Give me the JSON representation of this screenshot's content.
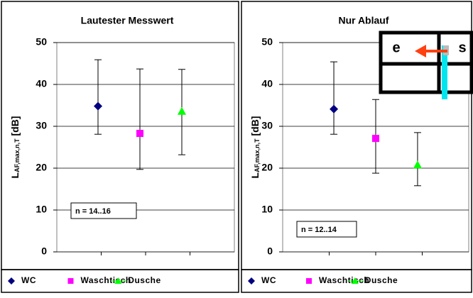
{
  "chart_data": [
    {
      "type": "errorbar",
      "title": "Lautester Messwert",
      "y_label": {
        "main": "L",
        "sub": "AF,max,n,T",
        "unit": "[dB]"
      },
      "annotation": "n = 14..16",
      "ylim": [
        0,
        50
      ],
      "yticks": [
        0,
        10,
        20,
        30,
        40,
        50
      ],
      "grid": true,
      "series": [
        {
          "name": "WC",
          "color": "#000080",
          "marker": "diamond",
          "values": [
            34.8
          ],
          "lower": [
            28.1
          ],
          "upper": [
            45.9
          ]
        },
        {
          "name": "Waschtisch",
          "color": "#ff00ff",
          "marker": "square",
          "values": [
            28.3
          ],
          "lower": [
            19.7
          ],
          "upper": [
            43.7
          ]
        },
        {
          "name": "Dusche",
          "color": "#00ff00",
          "marker": "triangle",
          "values": [
            33.6
          ],
          "lower": [
            23.2
          ],
          "upper": [
            43.6
          ]
        }
      ]
    },
    {
      "type": "errorbar",
      "title": "Nur Ablauf",
      "y_label": {
        "main": "L",
        "sub": "AF,max,n,T",
        "unit": "[dB]"
      },
      "annotation": "n = 12..14",
      "ylim": [
        0,
        50
      ],
      "yticks": [
        0,
        10,
        20,
        30,
        40,
        50
      ],
      "grid": true,
      "series": [
        {
          "name": "WC",
          "color": "#000080",
          "marker": "diamond",
          "values": [
            34.1
          ],
          "lower": [
            28.1
          ],
          "upper": [
            45.4
          ]
        },
        {
          "name": "Waschtisch",
          "color": "#ff00ff",
          "marker": "square",
          "values": [
            27.1
          ],
          "lower": [
            18.8
          ],
          "upper": [
            36.4
          ]
        },
        {
          "name": "Dusche",
          "color": "#00ff00",
          "marker": "triangle",
          "values": [
            20.8
          ],
          "lower": [
            15.8
          ],
          "upper": [
            28.5
          ]
        }
      ]
    }
  ],
  "overlay": {
    "left": "e",
    "right": "s"
  }
}
